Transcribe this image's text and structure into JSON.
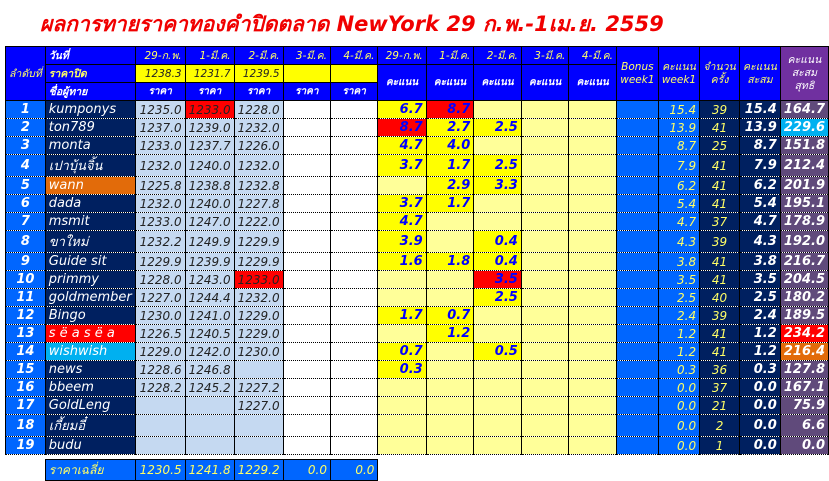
{
  "title": "ผลการทายราคาทองคำปิดตลาด NewYork 29 ก.พ.-1เม.ย. 2559",
  "header": {
    "rank_label": "ลำดับที่",
    "date_label": "วันที่",
    "close_label": "ราคาปิด",
    "name_label": "ชื่อผู้ทาย",
    "price_label": "ราคา",
    "score_label": "คะแนน",
    "dates": [
      "29-ก.พ.",
      "1-มี.ค.",
      "2-มี.ค.",
      "3-มี.ค.",
      "4-มี.ค."
    ],
    "close_prices": [
      "1238.3",
      "1231.7",
      "1239.5",
      "",
      ""
    ],
    "bonus_label": "Bonus week1",
    "week_label": "คะแนน week1",
    "count_label": "จำนวนครั้ง",
    "cum_label": "คะแนนสะสม",
    "net_label": "คะแนนสะสมสุทธิ"
  },
  "colors": {
    "red": "#ff0000",
    "orange": "#e26b0a",
    "cyan": "#00b0f0",
    "yellow": "#ffff00"
  },
  "rows": [
    {
      "rank": "1",
      "name": "kumponys",
      "prices": [
        "1235.0",
        "1233.0",
        "1228.0",
        "",
        ""
      ],
      "red_prices": [
        1
      ],
      "scores": [
        "6.7",
        "8.7",
        "",
        "",
        ""
      ],
      "red_scores": [
        1
      ],
      "bonus": "",
      "week": "15.4",
      "count": "39",
      "cum": "15.4",
      "net": "164.7"
    },
    {
      "rank": "2",
      "name": "ton789",
      "prices": [
        "1237.0",
        "1239.0",
        "1232.0",
        "",
        ""
      ],
      "red_prices": [],
      "scores": [
        "8.7",
        "2.7",
        "2.5",
        "",
        ""
      ],
      "red_scores": [
        0
      ],
      "bonus": "",
      "week": "13.9",
      "count": "41",
      "cum": "13.9",
      "net": "229.6",
      "net_color": "cyan"
    },
    {
      "rank": "3",
      "name": "monta",
      "prices": [
        "1233.0",
        "1237.7",
        "1226.0",
        "",
        ""
      ],
      "red_prices": [],
      "scores": [
        "4.7",
        "4.0",
        "",
        "",
        ""
      ],
      "red_scores": [],
      "bonus": "",
      "week": "8.7",
      "count": "25",
      "cum": "8.7",
      "net": "151.8"
    },
    {
      "rank": "4",
      "name": "เปาบุ้นจิ้น",
      "prices": [
        "1232.0",
        "1240.0",
        "1232.0",
        "",
        ""
      ],
      "red_prices": [],
      "scores": [
        "3.7",
        "1.7",
        "2.5",
        "",
        ""
      ],
      "red_scores": [],
      "bonus": "",
      "week": "7.9",
      "count": "41",
      "cum": "7.9",
      "net": "212.4"
    },
    {
      "rank": "5",
      "name": "wann",
      "name_color": "orange",
      "prices": [
        "1225.8",
        "1238.8",
        "1232.8",
        "",
        ""
      ],
      "red_prices": [],
      "scores": [
        "",
        "2.9",
        "3.3",
        "",
        ""
      ],
      "red_scores": [],
      "bonus": "",
      "week": "6.2",
      "count": "41",
      "cum": "6.2",
      "net": "201.9"
    },
    {
      "rank": "6",
      "name": "dada",
      "prices": [
        "1232.0",
        "1240.0",
        "1227.8",
        "",
        ""
      ],
      "red_prices": [],
      "scores": [
        "3.7",
        "1.7",
        "",
        "",
        ""
      ],
      "red_scores": [],
      "bonus": "",
      "week": "5.4",
      "count": "41",
      "cum": "5.4",
      "net": "195.1"
    },
    {
      "rank": "7",
      "name": "msmit",
      "prices": [
        "1233.0",
        "1247.0",
        "1222.0",
        "",
        ""
      ],
      "red_prices": [],
      "scores": [
        "4.7",
        "",
        "",
        "",
        ""
      ],
      "red_scores": [],
      "bonus": "",
      "week": "4.7",
      "count": "37",
      "cum": "4.7",
      "net": "178.9"
    },
    {
      "rank": "8",
      "name": "ขาใหม่",
      "prices": [
        "1232.2",
        "1249.9",
        "1229.9",
        "",
        ""
      ],
      "red_prices": [],
      "scores": [
        "3.9",
        "",
        "0.4",
        "",
        ""
      ],
      "red_scores": [],
      "bonus": "",
      "week": "4.3",
      "count": "39",
      "cum": "4.3",
      "net": "192.0"
    },
    {
      "rank": "9",
      "name": "Guide sit",
      "prices": [
        "1229.9",
        "1239.9",
        "1229.9",
        "",
        ""
      ],
      "red_prices": [],
      "scores": [
        "1.6",
        "1.8",
        "0.4",
        "",
        ""
      ],
      "red_scores": [],
      "bonus": "",
      "week": "3.8",
      "count": "41",
      "cum": "3.8",
      "net": "216.7"
    },
    {
      "rank": "10",
      "name": "primmy",
      "prices": [
        "1228.0",
        "1243.0",
        "1233.0",
        "",
        ""
      ],
      "red_prices": [
        2
      ],
      "scores": [
        "",
        "",
        "3.5",
        "",
        ""
      ],
      "red_scores": [
        2
      ],
      "bonus": "",
      "week": "3.5",
      "count": "41",
      "cum": "3.5",
      "net": "204.5"
    },
    {
      "rank": "11",
      "name": "goldmember",
      "prices": [
        "1227.0",
        "1244.4",
        "1232.0",
        "",
        ""
      ],
      "red_prices": [],
      "scores": [
        "",
        "",
        "2.5",
        "",
        ""
      ],
      "red_scores": [],
      "bonus": "",
      "week": "2.5",
      "count": "40",
      "cum": "2.5",
      "net": "180.2"
    },
    {
      "rank": "12",
      "name": "Bingo",
      "prices": [
        "1230.0",
        "1241.0",
        "1229.0",
        "",
        ""
      ],
      "red_prices": [],
      "scores": [
        "1.7",
        "0.7",
        "",
        "",
        ""
      ],
      "red_scores": [],
      "bonus": "",
      "week": "2.4",
      "count": "39",
      "cum": "2.4",
      "net": "189.5"
    },
    {
      "rank": "13",
      "name": "s ë a s ë a",
      "name_color": "red",
      "prices": [
        "1226.5",
        "1240.5",
        "1229.0",
        "",
        ""
      ],
      "red_prices": [],
      "scores": [
        "",
        "1.2",
        "",
        "",
        ""
      ],
      "red_scores": [],
      "bonus": "",
      "week": "1.2",
      "count": "41",
      "cum": "1.2",
      "net": "234.2",
      "net_color": "red"
    },
    {
      "rank": "14",
      "name": "wishwish",
      "name_color": "cyan",
      "prices": [
        "1229.0",
        "1242.0",
        "1230.0",
        "",
        ""
      ],
      "red_prices": [],
      "scores": [
        "0.7",
        "",
        "0.5",
        "",
        ""
      ],
      "red_scores": [],
      "bonus": "",
      "week": "1.2",
      "count": "41",
      "cum": "1.2",
      "net": "216.4",
      "net_color": "orange"
    },
    {
      "rank": "15",
      "name": "news",
      "prices": [
        "1228.6",
        "1246.8",
        "",
        "",
        ""
      ],
      "red_prices": [],
      "scores": [
        "0.3",
        "",
        "",
        "",
        ""
      ],
      "red_scores": [],
      "bonus": "",
      "week": "0.3",
      "count": "36",
      "cum": "0.3",
      "net": "127.8"
    },
    {
      "rank": "16",
      "name": "bbeem",
      "prices": [
        "1228.2",
        "1245.2",
        "1227.2",
        "",
        ""
      ],
      "red_prices": [],
      "scores": [
        "",
        "",
        "",
        "",
        ""
      ],
      "red_scores": [],
      "bonus": "",
      "week": "0.0",
      "count": "37",
      "cum": "0.0",
      "net": "167.1"
    },
    {
      "rank": "17",
      "name": "GoldLeng",
      "prices": [
        "",
        "",
        "1227.0",
        "",
        ""
      ],
      "red_prices": [],
      "scores": [
        "",
        "",
        "",
        "",
        ""
      ],
      "red_scores": [],
      "bonus": "",
      "week": "0.0",
      "count": "21",
      "cum": "0.0",
      "net": "75.9"
    },
    {
      "rank": "18",
      "name": "เกี้ยมอี๋",
      "prices": [
        "",
        "",
        "",
        "",
        ""
      ],
      "red_prices": [],
      "scores": [
        "",
        "",
        "",
        "",
        ""
      ],
      "red_scores": [],
      "bonus": "",
      "week": "0.0",
      "count": "2",
      "cum": "0.0",
      "net": "6.6"
    },
    {
      "rank": "19",
      "name": "budu",
      "prices": [
        "",
        "",
        "",
        "",
        ""
      ],
      "red_prices": [],
      "scores": [
        "",
        "",
        "",
        "",
        ""
      ],
      "red_scores": [],
      "bonus": "",
      "week": "0.0",
      "count": "1",
      "cum": "0.0",
      "net": "0.0"
    }
  ],
  "footer": {
    "label": "ราคาเฉลี่ย",
    "averages": [
      "1230.5",
      "1241.8",
      "1229.2",
      "0.0",
      "0.0"
    ]
  }
}
